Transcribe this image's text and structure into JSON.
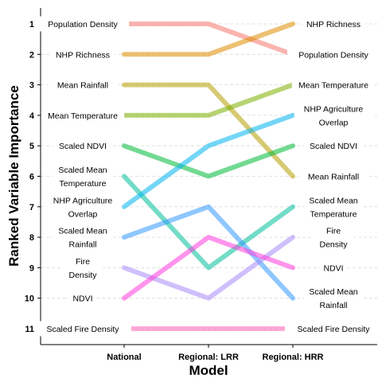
{
  "chart_data": {
    "type": "line",
    "subtype": "bump",
    "xlabel": "Model",
    "ylabel": "Ranked Variable Importance",
    "x_categories": [
      "National",
      "Regional: LRR",
      "Regional: HRR"
    ],
    "y_ticks": [
      1,
      2,
      3,
      4,
      5,
      6,
      7,
      8,
      9,
      10,
      11
    ],
    "y_reversed": true,
    "grid": "horizontal dashed",
    "legend": "none",
    "left_labels": [
      {
        "rank": 1,
        "lines": [
          "Population Density"
        ]
      },
      {
        "rank": 2,
        "lines": [
          "NHP Richness"
        ]
      },
      {
        "rank": 3,
        "lines": [
          "Mean Rainfall"
        ]
      },
      {
        "rank": 4,
        "lines": [
          "Mean Temperature"
        ]
      },
      {
        "rank": 5,
        "lines": [
          "Scaled NDVI"
        ]
      },
      {
        "rank": 6,
        "lines": [
          "Scaled Mean",
          "Temperature"
        ]
      },
      {
        "rank": 7,
        "lines": [
          "NHP Agriculture",
          "Overlap"
        ]
      },
      {
        "rank": 8,
        "lines": [
          "Scaled Mean",
          "Rainfall"
        ]
      },
      {
        "rank": 9,
        "lines": [
          "Fire",
          "Density"
        ]
      },
      {
        "rank": 10,
        "lines": [
          "NDVI"
        ]
      },
      {
        "rank": 11,
        "lines": [
          "Scaled Fire Density"
        ]
      }
    ],
    "right_labels": [
      {
        "rank": 1,
        "lines": [
          "NHP Richness"
        ]
      },
      {
        "rank": 2,
        "lines": [
          "Population Density"
        ]
      },
      {
        "rank": 3,
        "lines": [
          "Mean Temperature"
        ]
      },
      {
        "rank": 4,
        "lines": [
          "NHP Agriculture",
          "Overlap"
        ]
      },
      {
        "rank": 5,
        "lines": [
          "Scaled NDVI"
        ]
      },
      {
        "rank": 6,
        "lines": [
          "Mean Rainfall"
        ]
      },
      {
        "rank": 7,
        "lines": [
          "Scaled Mean",
          "Temperature"
        ]
      },
      {
        "rank": 8,
        "lines": [
          "Fire",
          "Density"
        ]
      },
      {
        "rank": 9,
        "lines": [
          "NDVI"
        ]
      },
      {
        "rank": 10,
        "lines": [
          "Scaled Mean",
          "Rainfall"
        ]
      },
      {
        "rank": 11,
        "lines": [
          "Scaled Fire Density"
        ]
      }
    ],
    "series": [
      {
        "id": "population-density",
        "color": "#F8766D",
        "values": [
          1,
          1,
          2
        ]
      },
      {
        "id": "nhp-richness",
        "color": "#DE8C00",
        "values": [
          2,
          2,
          1
        ]
      },
      {
        "id": "mean-rainfall",
        "color": "#B79F00",
        "values": [
          3,
          3,
          6
        ]
      },
      {
        "id": "mean-temperature",
        "color": "#7CAE00",
        "values": [
          4,
          4,
          3
        ]
      },
      {
        "id": "scaled-ndvi",
        "color": "#00BA38",
        "values": [
          5,
          6,
          5
        ]
      },
      {
        "id": "scaled-mean-temperature",
        "color": "#00BF9A",
        "values": [
          6,
          9,
          7
        ]
      },
      {
        "id": "nhp-agriculture-overlap",
        "color": "#00B4EF",
        "values": [
          7,
          5,
          4
        ]
      },
      {
        "id": "scaled-mean-rainfall",
        "color": "#3399FF",
        "values": [
          8,
          7,
          10
        ]
      },
      {
        "id": "fire-density",
        "color": "#A78BFA",
        "values": [
          9,
          10,
          8
        ]
      },
      {
        "id": "ndvi",
        "color": "#FF3DDC",
        "values": [
          10,
          8,
          9
        ]
      },
      {
        "id": "scaled-fire-density",
        "color": "#FF63B6",
        "values": [
          11,
          11,
          11
        ]
      }
    ]
  }
}
